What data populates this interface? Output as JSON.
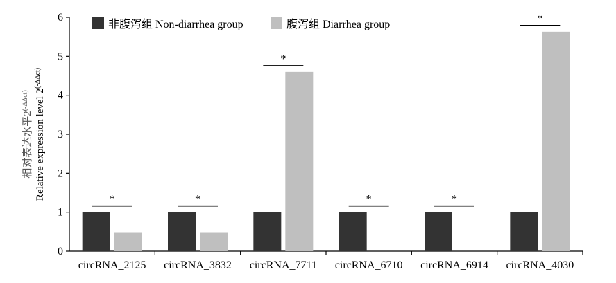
{
  "chart_data": {
    "type": "bar",
    "categories": [
      "circRNA_2125",
      "circRNA_3832",
      "circRNA_7711",
      "circRNA_6710",
      "circRNA_6914",
      "circRNA_4030"
    ],
    "series": [
      {
        "name": "非腹泻组 Non-diarrhea group",
        "values": [
          1.0,
          1.0,
          1.0,
          1.0,
          1.0,
          1.0
        ],
        "color": "#333333"
      },
      {
        "name": "腹泻组 Diarrhea group",
        "values": [
          0.47,
          0.47,
          4.6,
          0,
          0,
          5.63
        ],
        "color": "#bfbfbf"
      }
    ],
    "significance": [
      "*",
      "*",
      "*",
      "*",
      "*",
      "*"
    ],
    "ylabel_cn": "相对表达水平2",
    "ylabel_en": "Relative expression level 2",
    "ylabel_exponent": "(-ΔΔct)",
    "ylim": [
      0,
      6
    ],
    "yticks": [
      "0",
      "1",
      "2",
      "3",
      "4",
      "5",
      "6"
    ],
    "legend_position": "top-left",
    "grid": false
  }
}
